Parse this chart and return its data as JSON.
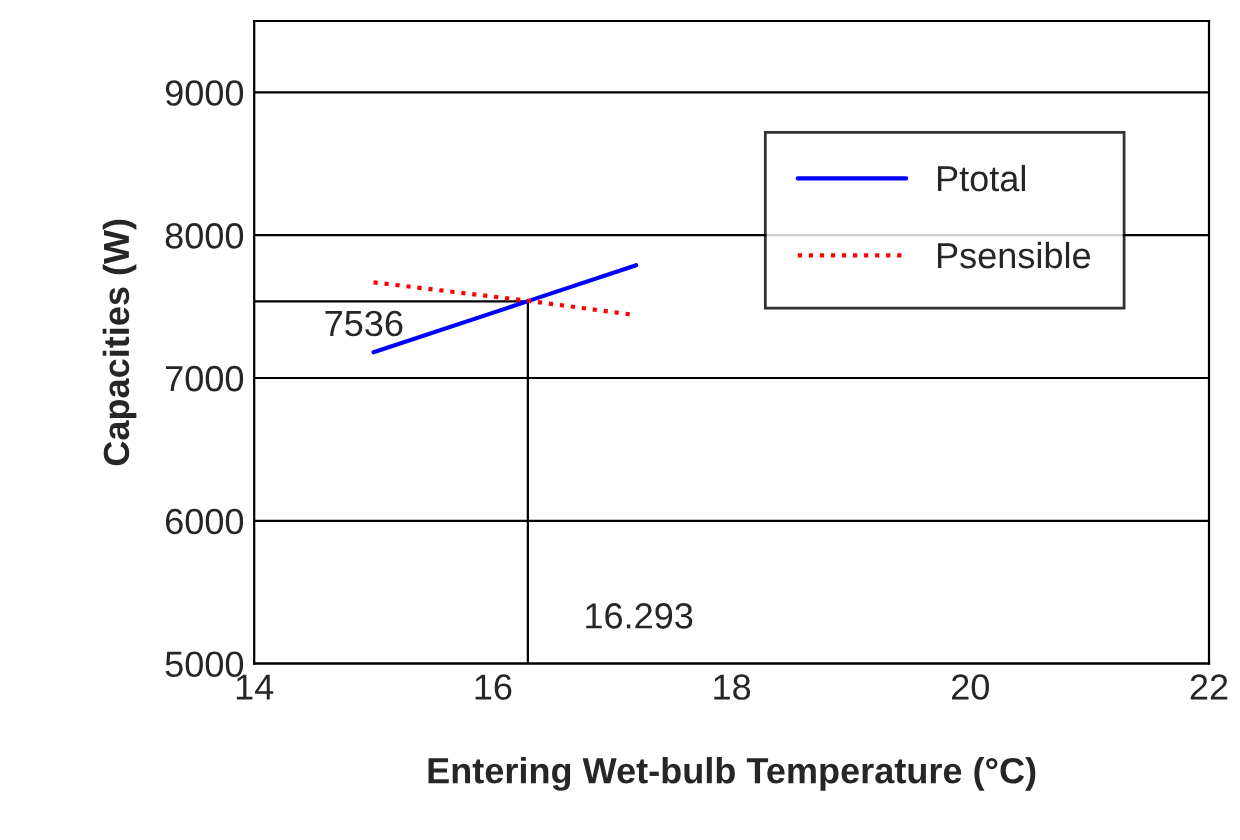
{
  "chart_data": {
    "type": "line",
    "xlabel": "Entering Wet-bulb Temperature (°C)",
    "ylabel": "Capacities (W)",
    "series": [
      {
        "name": "Ptotal",
        "color": "#0000ff",
        "line_style": "solid",
        "x": [
          15,
          16.3,
          17.2
        ],
        "values": [
          7180,
          7540,
          7790
        ]
      },
      {
        "name": "Psensible",
        "color": "#ff0000",
        "line_style": "dotted",
        "x": [
          15,
          16.3,
          17.2
        ],
        "values": [
          7670,
          7540,
          7440
        ]
      }
    ],
    "xlim": [
      14,
      22
    ],
    "xticks": [
      14,
      16,
      18,
      20,
      22
    ],
    "ylim": [
      5000,
      9500
    ],
    "yticks": [
      5000,
      6000,
      7000,
      8000,
      9000
    ],
    "grid": "y",
    "legend": "right",
    "marker": "none",
    "ref_lines": [
      {
        "axis": "y",
        "value": 7536,
        "label": "7536",
        "color": "#000000"
      },
      {
        "axis": "x",
        "value": 16.293,
        "label": "16.293",
        "color": "#000000"
      }
    ]
  }
}
